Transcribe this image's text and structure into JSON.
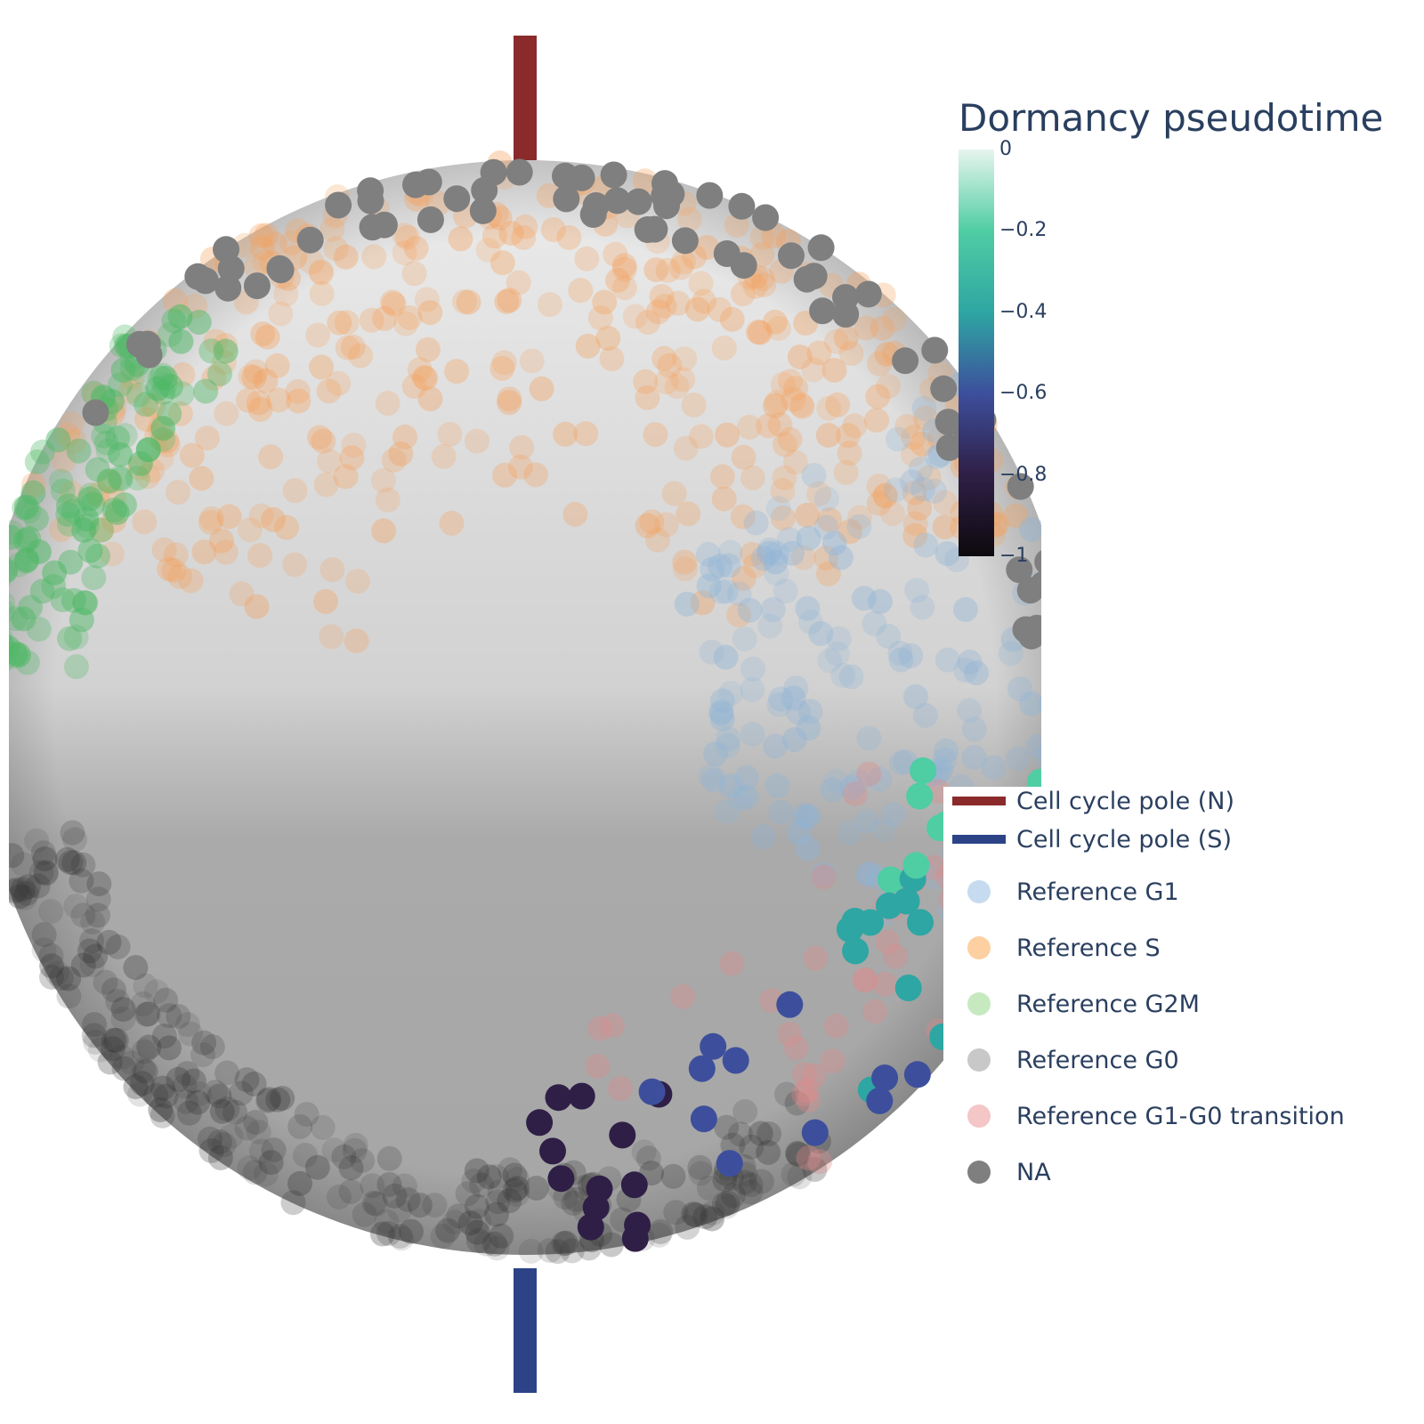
{
  "chart_data": {
    "type": "scatter",
    "title": "",
    "colorbar": {
      "title": "Dormancy pseudotime",
      "range": [
        -1,
        0
      ],
      "ticks": [
        "0",
        "−0.2",
        "−0.4",
        "−0.6",
        "−0.8",
        "−1"
      ],
      "tick_values": [
        0,
        -0.2,
        -0.4,
        -0.6,
        -0.8,
        -1
      ],
      "colors": [
        "#e7f5ee",
        "#4fcda3",
        "#2ea6a3",
        "#3d4f9c",
        "#2f1f46",
        "#0d0a0e"
      ]
    },
    "legend": {
      "placement": "right",
      "items": [
        {
          "label": "Cell cycle pole (N)",
          "kind": "line",
          "color": "#8b2a2b"
        },
        {
          "label": "Cell cycle pole (S)",
          "kind": "line",
          "color": "#2c4388"
        },
        {
          "label": "Reference G1",
          "kind": "marker",
          "color": "#c6dbef"
        },
        {
          "label": "Reference S",
          "kind": "marker",
          "color": "#fdd0a2"
        },
        {
          "label": "Reference G2M",
          "kind": "marker",
          "color": "#c7e9c0"
        },
        {
          "label": "Reference G0",
          "kind": "marker",
          "color": "#c8c8c8"
        },
        {
          "label": "Reference G1-G0 transition",
          "kind": "marker",
          "color": "#f4c6c6"
        },
        {
          "label": "NA",
          "kind": "marker",
          "color": "#7f7f7f"
        }
      ]
    },
    "series_groups": [
      {
        "name": "Reference S",
        "color": "#f5a05a",
        "region": "north",
        "count": 380
      },
      {
        "name": "Reference G1",
        "color": "#8fb4d6",
        "region": "east",
        "count": 170
      },
      {
        "name": "Reference G2M",
        "color": "#4fb866",
        "region": "northwest",
        "count": 120
      },
      {
        "name": "Reference G0",
        "color": "#7a7a7a",
        "region": "south",
        "count": 260
      },
      {
        "name": "Reference G1-G0 transition",
        "color": "#e08a8a",
        "region": "southeast",
        "count": 40
      },
      {
        "name": "NA",
        "color": "#7f7f7f",
        "region": "rim",
        "count": 70
      },
      {
        "name": "Dormancy pseudotime",
        "region": "southeast-rim",
        "count": 55
      }
    ]
  }
}
